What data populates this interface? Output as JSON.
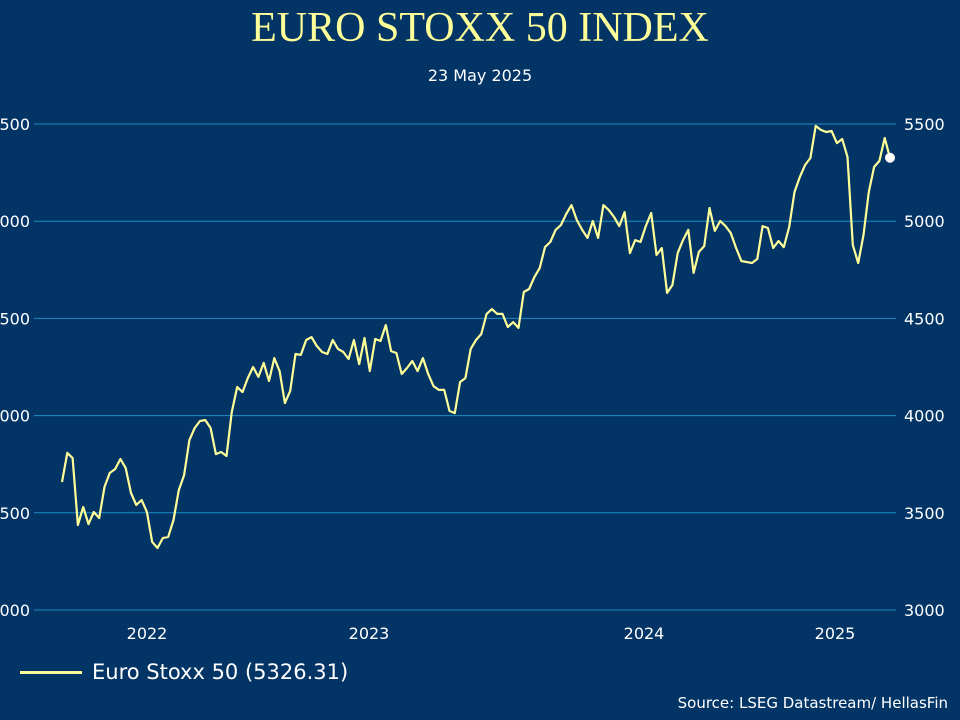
{
  "chart_data": {
    "type": "line",
    "title": "EURO STOXX 50 INDEX",
    "subtitle": "23 May 2025",
    "ylim": [
      3000,
      5500
    ],
    "y_ticks": [
      3000,
      3500,
      4000,
      4500,
      5000,
      5500
    ],
    "y_axis": "both sides",
    "x_tick_labels": [
      "2022",
      "2023",
      "2024",
      "2025"
    ],
    "grid": "horizontal",
    "legend_position": "bottom-left",
    "series": [
      {
        "name": "Euro Stoxx 50 (5326.31)",
        "color": "#FFFF99",
        "last_value": 5326.31,
        "values": [
          3658,
          3808,
          3782,
          3437,
          3530,
          3442,
          3504,
          3473,
          3633,
          3705,
          3725,
          3777,
          3730,
          3602,
          3540,
          3566,
          3504,
          3350,
          3319,
          3370,
          3376,
          3463,
          3617,
          3694,
          3874,
          3936,
          3972,
          3977,
          3936,
          3802,
          3813,
          3792,
          4019,
          4147,
          4121,
          4193,
          4250,
          4199,
          4271,
          4178,
          4296,
          4229,
          4065,
          4127,
          4317,
          4312,
          4389,
          4404,
          4358,
          4327,
          4317,
          4389,
          4343,
          4327,
          4291,
          4389,
          4265,
          4399,
          4229,
          4394,
          4384,
          4466,
          4332,
          4322,
          4214,
          4245,
          4281,
          4229,
          4296,
          4214,
          4152,
          4132,
          4132,
          4024,
          4013,
          4173,
          4193,
          4343,
          4389,
          4420,
          4523,
          4548,
          4523,
          4523,
          4456,
          4481,
          4451,
          4636,
          4651,
          4713,
          4759,
          4867,
          4893,
          4955,
          4980,
          5037,
          5083,
          5006,
          4955,
          4914,
          5001,
          4914,
          5083,
          5058,
          5022,
          4975,
          5047,
          4836,
          4903,
          4893,
          4975,
          5042,
          4826,
          4862,
          4631,
          4672,
          4836,
          4903,
          4955,
          4734,
          4842,
          4872,
          5068,
          4950,
          5001,
          4975,
          4939,
          4862,
          4795,
          4790,
          4785,
          4806,
          4975,
          4965,
          4862,
          4898,
          4867,
          4970,
          5150,
          5227,
          5289,
          5325,
          5490,
          5469,
          5459,
          5464,
          5402,
          5423,
          5330,
          4878,
          4785,
          4929,
          5150,
          5279,
          5310,
          5428,
          5326.31
        ]
      }
    ],
    "grid_color": "#1E8BC3",
    "background_color": "#023466"
  },
  "source": "Source: LSEG Datastream/ HellasFin"
}
